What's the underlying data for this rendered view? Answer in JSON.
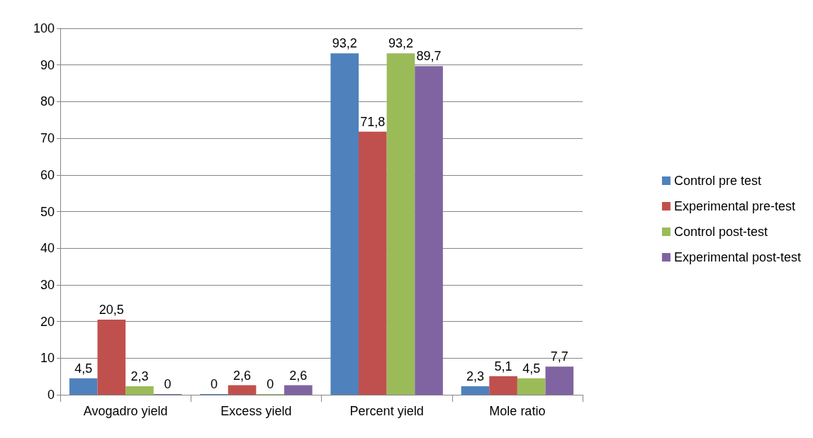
{
  "chart_data": {
    "type": "bar",
    "categories": [
      "Avogadro yield",
      "Excess yield",
      "Percent yield",
      "Mole ratio"
    ],
    "series": [
      {
        "name": "Control pre test",
        "color": "#4f81bd",
        "values": [
          4.5,
          0,
          93.2,
          2.3
        ],
        "value_labels": [
          "4,5",
          "0",
          "93,2",
          "2,3"
        ]
      },
      {
        "name": "Experimental pre-test",
        "color": "#c0504d",
        "values": [
          20.5,
          2.6,
          71.8,
          5.1
        ],
        "value_labels": [
          "20,5",
          "2,6",
          "71,8",
          "5,1"
        ]
      },
      {
        "name": "Control post-test",
        "color": "#9bbb59",
        "values": [
          2.3,
          0,
          93.2,
          4.5
        ],
        "value_labels": [
          "2,3",
          "0",
          "93,2",
          "4,5"
        ]
      },
      {
        "name": "Experimental post-test",
        "color": "#8064a2",
        "values": [
          0,
          2.6,
          89.7,
          7.7
        ],
        "value_labels": [
          "0",
          "2,6",
          "89,7",
          "7,7"
        ]
      }
    ],
    "ylim": [
      0,
      100
    ],
    "yticks": [
      0,
      10,
      20,
      30,
      40,
      50,
      60,
      70,
      80,
      90,
      100
    ],
    "grid": "y",
    "legend": "right"
  }
}
